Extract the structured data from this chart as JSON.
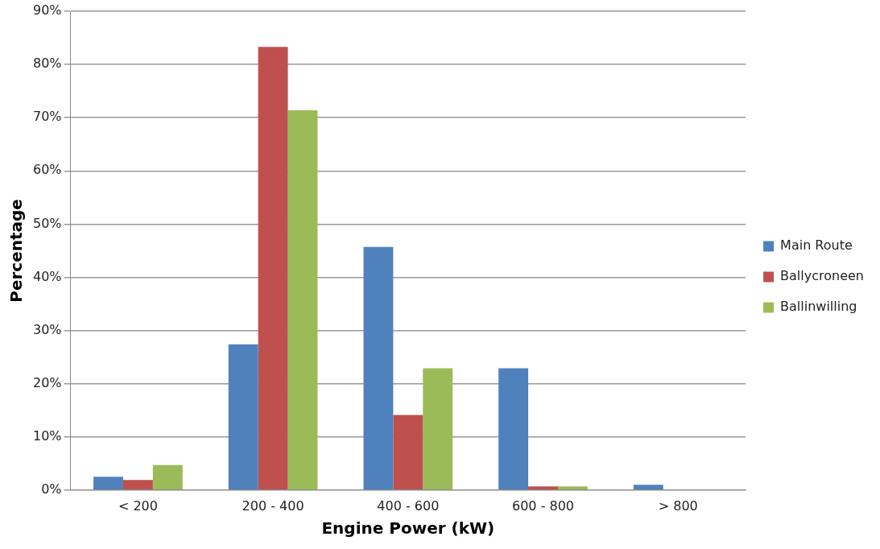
{
  "chart_data": {
    "type": "bar",
    "xlabel": "Engine Power (kW)",
    "ylabel": "Percentage",
    "categories": [
      "< 200",
      "200 - 400",
      "400 - 600",
      "600 - 800",
      "> 800"
    ],
    "series": [
      {
        "name": "Main Route",
        "color": "#4f81bd",
        "values": [
          2.5,
          27.4,
          45.7,
          22.9,
          1
        ]
      },
      {
        "name": "Ballycroneen",
        "color": "#c0504d",
        "values": [
          1.9,
          83.3,
          14.1,
          0.7,
          0
        ]
      },
      {
        "name": "Ballinwilling",
        "color": "#9bbb59",
        "values": [
          4.7,
          71.4,
          22.9,
          0.7,
          0
        ]
      }
    ],
    "ylim": [
      0,
      90
    ],
    "yticks": [
      {
        "value": 0,
        "label": "0%"
      },
      {
        "value": 10,
        "label": "10%"
      },
      {
        "value": 20,
        "label": "20%"
      },
      {
        "value": 30,
        "label": "30%"
      },
      {
        "value": 40,
        "label": "40%"
      },
      {
        "value": 50,
        "label": "50%"
      },
      {
        "value": 60,
        "label": "60%"
      },
      {
        "value": 70,
        "label": "70%"
      },
      {
        "value": 80,
        "label": "80%"
      },
      {
        "value": 90,
        "label": "90%"
      }
    ],
    "grid": "y",
    "legend": "right"
  }
}
